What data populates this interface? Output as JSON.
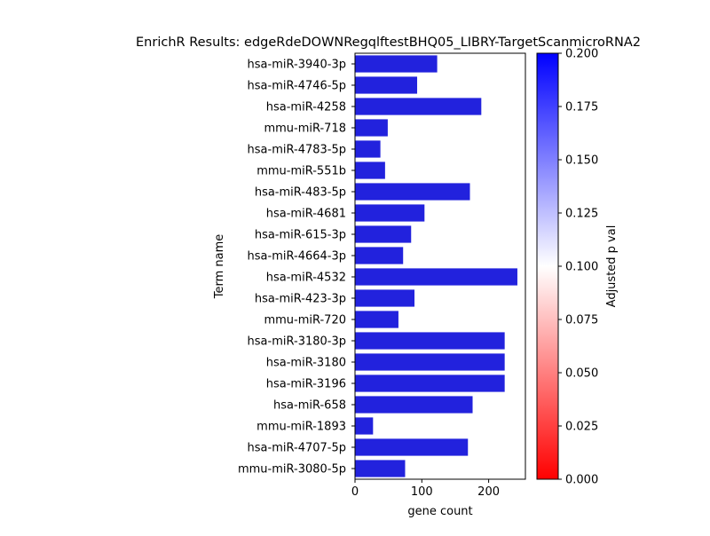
{
  "chart_data": {
    "type": "bar",
    "orientation": "horizontal",
    "title": "EnrichR Results: edgeRdeDOWNRegqlftestBHQ05_LIBRY-TargetScanmicroRNA2",
    "xlabel": "gene count",
    "ylabel": "Term name",
    "xlim": [
      0,
      255
    ],
    "xticks": [
      0,
      100,
      200
    ],
    "categories": [
      "hsa-miR-3940-3p",
      "hsa-miR-4746-5p",
      "hsa-miR-4258",
      "mmu-miR-718",
      "hsa-miR-4783-5p",
      "mmu-miR-551b",
      "hsa-miR-483-5p",
      "hsa-miR-4681",
      "hsa-miR-615-3p",
      "hsa-miR-4664-3p",
      "hsa-miR-4532",
      "hsa-miR-423-3p",
      "mmu-miR-720",
      "hsa-miR-3180-3p",
      "hsa-miR-3180",
      "hsa-miR-3196",
      "hsa-miR-658",
      "mmu-miR-1893",
      "hsa-miR-4707-5p",
      "mmu-miR-3080-5p"
    ],
    "values": [
      123,
      93,
      189,
      49,
      38,
      45,
      172,
      104,
      84,
      72,
      243,
      89,
      65,
      224,
      224,
      224,
      176,
      27,
      169,
      75
    ],
    "bar_color": "#2222dd",
    "grid": false,
    "colorbar": {
      "label": "Adjusted p val",
      "range": [
        0.0,
        0.2
      ],
      "ticks": [
        "0.000",
        "0.025",
        "0.050",
        "0.075",
        "0.100",
        "0.125",
        "0.150",
        "0.175",
        "0.200"
      ],
      "colors": [
        "#ff0000",
        "#ffffff",
        "#0000ff"
      ]
    }
  }
}
